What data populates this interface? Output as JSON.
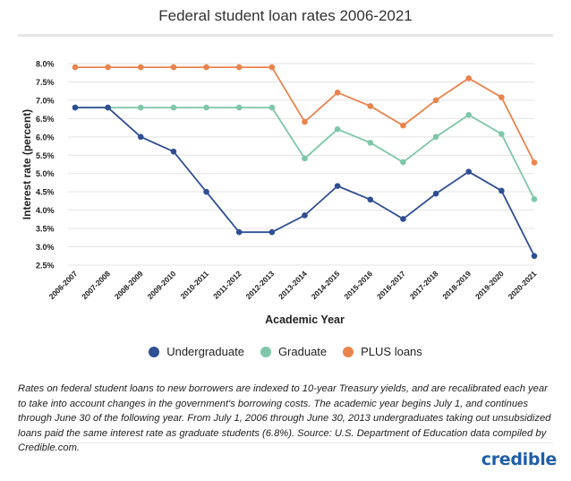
{
  "chart_data": {
    "type": "line",
    "title": "Federal student loan rates 2006-2021",
    "xlabel": "Academic Year",
    "ylabel": "Interest rate (percent)",
    "ylim": [
      2.5,
      8.0
    ],
    "yticks": [
      "2.5%",
      "3.0%",
      "3.5%",
      "4.0%",
      "4.5%",
      "5.0%",
      "5.5%",
      "6.0%",
      "6.5%",
      "7.0%",
      "7.5%",
      "8.0%"
    ],
    "grid": true,
    "legend_position": "bottom",
    "categories": [
      "2006-2007",
      "2007-2008",
      "2008-2009",
      "2009-2010",
      "2010-2011",
      "2011-2012",
      "2012-2013",
      "2013-2014",
      "2014-2015",
      "2015-2016",
      "2016-2017",
      "2017-2018",
      "2018-2019",
      "2019-2020",
      "2020-2021"
    ],
    "series": [
      {
        "name": "Undergraduate",
        "color": "#2f4f93",
        "values": [
          6.8,
          6.8,
          6.0,
          5.6,
          4.5,
          3.4,
          3.4,
          3.86,
          4.66,
          4.29,
          3.76,
          4.45,
          5.05,
          4.53,
          2.75
        ]
      },
      {
        "name": "Graduate",
        "color": "#7ec7a9",
        "values": [
          6.8,
          6.8,
          6.8,
          6.8,
          6.8,
          6.8,
          6.8,
          5.41,
          6.21,
          5.84,
          5.31,
          6.0,
          6.6,
          6.08,
          4.3
        ]
      },
      {
        "name": "PLUS loans",
        "color": "#e9844d",
        "values": [
          7.9,
          7.9,
          7.9,
          7.9,
          7.9,
          7.9,
          7.9,
          6.41,
          7.21,
          6.84,
          6.31,
          7.0,
          7.6,
          7.08,
          5.3
        ]
      }
    ]
  },
  "caption": "Rates on federal student loans to new borrowers are indexed to 10-year Treasury yields, and are recalibrated each year to take into account changes in the government's borrowing costs. The academic year begins July 1, and continues through June 30 of the following year. From July 1, 2006 through June 30, 2013 undergraduates taking out unsubsidized loans paid the same interest rate as graduate students (6.8%). Source: U.S. Department of Education data compiled by Credible.com.",
  "logo_text": "credible"
}
